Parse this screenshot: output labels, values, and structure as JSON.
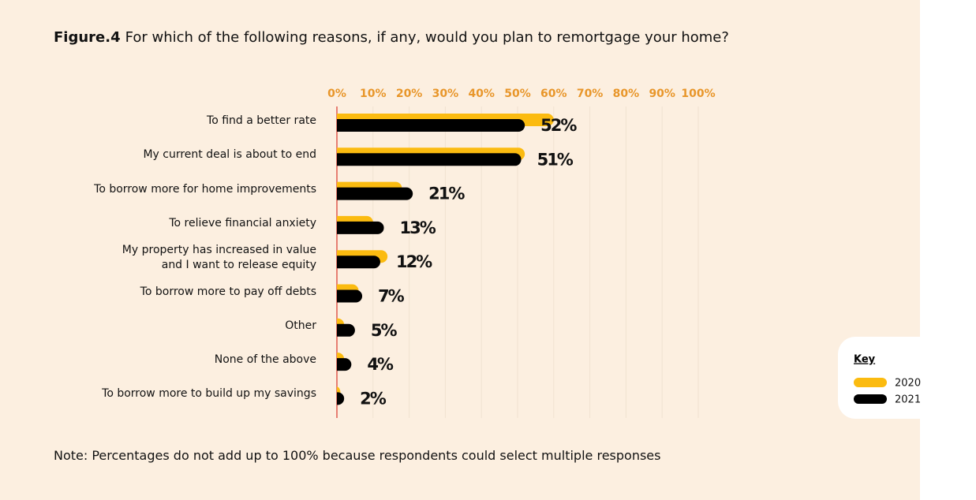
{
  "chart_data": {
    "type": "bar",
    "orientation": "horizontal",
    "figure_label": "Figure.4",
    "title": "For which of the following reasons, if any, would you plan to remortgage your home?",
    "categories": [
      "To find a better rate",
      "My current deal is about to end",
      "To borrow more for home improvements",
      "To relieve financial anxiety",
      "My property has increased in value\nand I want to release equity",
      "To borrow more to pay off debts",
      "Other",
      "None of the above",
      "To borrow more to build up my savings"
    ],
    "series": [
      {
        "name": "2020",
        "color": "#fbbb10",
        "values": [
          60,
          52,
          18,
          10,
          14,
          6,
          2,
          2,
          1
        ]
      },
      {
        "name": "2021",
        "color": "#000000",
        "values": [
          52,
          51,
          21,
          13,
          12,
          7,
          5,
          4,
          2
        ],
        "value_labels": [
          "52%",
          "51%",
          "21%",
          "13%",
          "12%",
          "7%",
          "5%",
          "4%",
          "2%"
        ]
      }
    ],
    "xlim": [
      0,
      100
    ],
    "xticks": [
      {
        "value": 0,
        "label": "0%"
      },
      {
        "value": 10,
        "label": "10%"
      },
      {
        "value": 20,
        "label": "20%"
      },
      {
        "value": 30,
        "label": "30%"
      },
      {
        "value": 40,
        "label": "40%"
      },
      {
        "value": 50,
        "label": "50%"
      },
      {
        "value": 60,
        "label": "60%"
      },
      {
        "value": 70,
        "label": "70%"
      },
      {
        "value": 80,
        "label": "80%"
      },
      {
        "value": 90,
        "label": "90%"
      },
      {
        "value": 100,
        "label": "100%"
      }
    ],
    "grid": true,
    "legend_title": "Key",
    "legend_position": "right",
    "note": "Note: Percentages do not add up to 100% because respondents could select multiple responses"
  }
}
